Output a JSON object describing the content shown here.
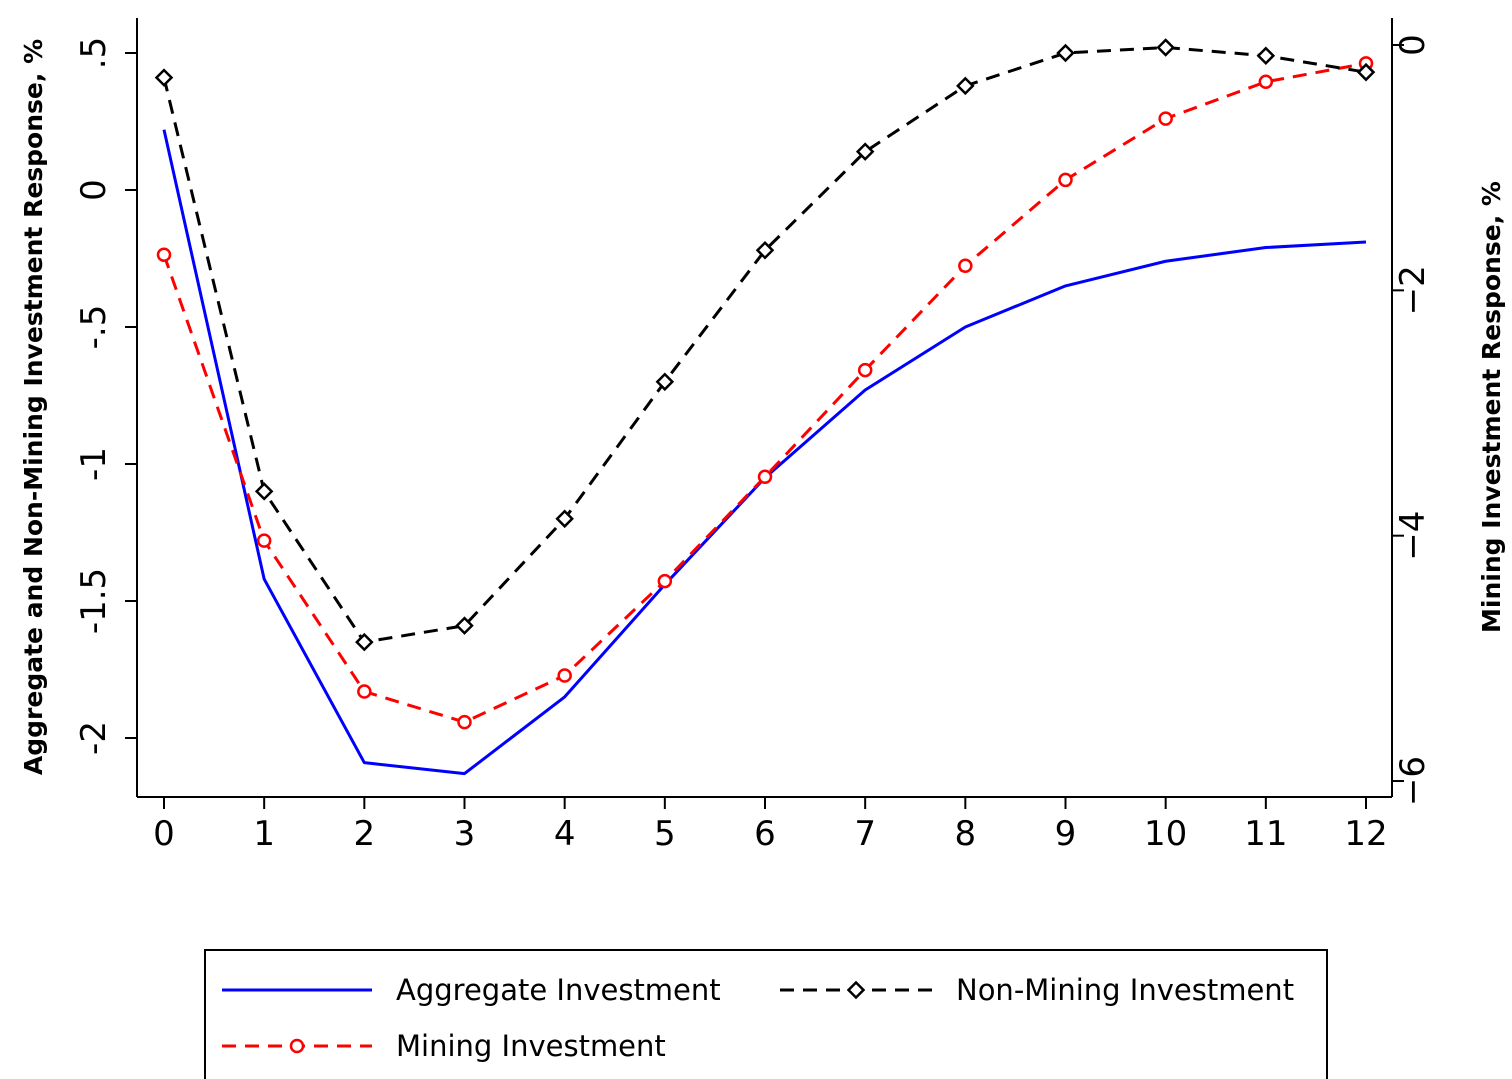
{
  "chart_data": {
    "type": "line",
    "title": "",
    "x": [
      0,
      1,
      2,
      3,
      4,
      5,
      6,
      7,
      8,
      9,
      10,
      11,
      12
    ],
    "x_ticks": [
      "0",
      "1",
      "2",
      "3",
      "4",
      "5",
      "6",
      "7",
      "8",
      "9",
      "10",
      "11",
      "12"
    ],
    "xlabel": "",
    "xlim": [
      0,
      12
    ],
    "ylabel": "Aggregate and Non-Mining Investment Response, %",
    "ylim": [
      -2.2,
      0.55
    ],
    "y_ticks": [
      {
        "value": 0.5,
        "label": ".5"
      },
      {
        "value": 0,
        "label": "0"
      },
      {
        "value": -0.5,
        "label": "-.5"
      },
      {
        "value": -1,
        "label": "-1"
      },
      {
        "value": -1.5,
        "label": "-1.5"
      },
      {
        "value": -2,
        "label": "-2"
      }
    ],
    "y2label": "Mining Investment Response, %",
    "y2lim": [
      -6.2,
      0.1
    ],
    "y2_ticks": [
      {
        "value": 0,
        "label": "0"
      },
      {
        "value": -2,
        "label": "−2"
      },
      {
        "value": -4,
        "label": "−4"
      },
      {
        "value": -6,
        "label": "−6"
      }
    ],
    "grid": false,
    "legend_position": "bottom",
    "series": [
      {
        "name": "Aggregate Investment",
        "axis": "left",
        "color": "#0000ff",
        "dash": "solid",
        "marker": "none",
        "values": [
          0.22,
          -1.42,
          -2.09,
          -2.13,
          -1.85,
          -1.44,
          -1.05,
          -0.73,
          -0.5,
          -0.35,
          -0.26,
          -0.21,
          -0.19
        ]
      },
      {
        "name": "Mining Investment",
        "axis": "right",
        "color": "#ff0000",
        "dash": "dashed",
        "marker": "circle",
        "values": [
          -1.71,
          -4.04,
          -5.27,
          -5.52,
          -5.14,
          -4.37,
          -3.52,
          -2.65,
          -1.8,
          -1.1,
          -0.6,
          -0.3,
          -0.15
        ]
      },
      {
        "name": "Non-Mining Investment",
        "axis": "left",
        "color": "#000000",
        "dash": "dashed",
        "marker": "diamond",
        "values": [
          0.41,
          -1.1,
          -1.65,
          -1.59,
          -1.2,
          -0.7,
          -0.22,
          0.14,
          0.38,
          0.5,
          0.52,
          0.49,
          0.43
        ]
      }
    ],
    "legend": [
      {
        "series": 0,
        "label": "Aggregate Investment"
      },
      {
        "series": 2,
        "label": "Non-Mining Investment"
      },
      {
        "series": 1,
        "label": "Mining Investment"
      }
    ]
  }
}
